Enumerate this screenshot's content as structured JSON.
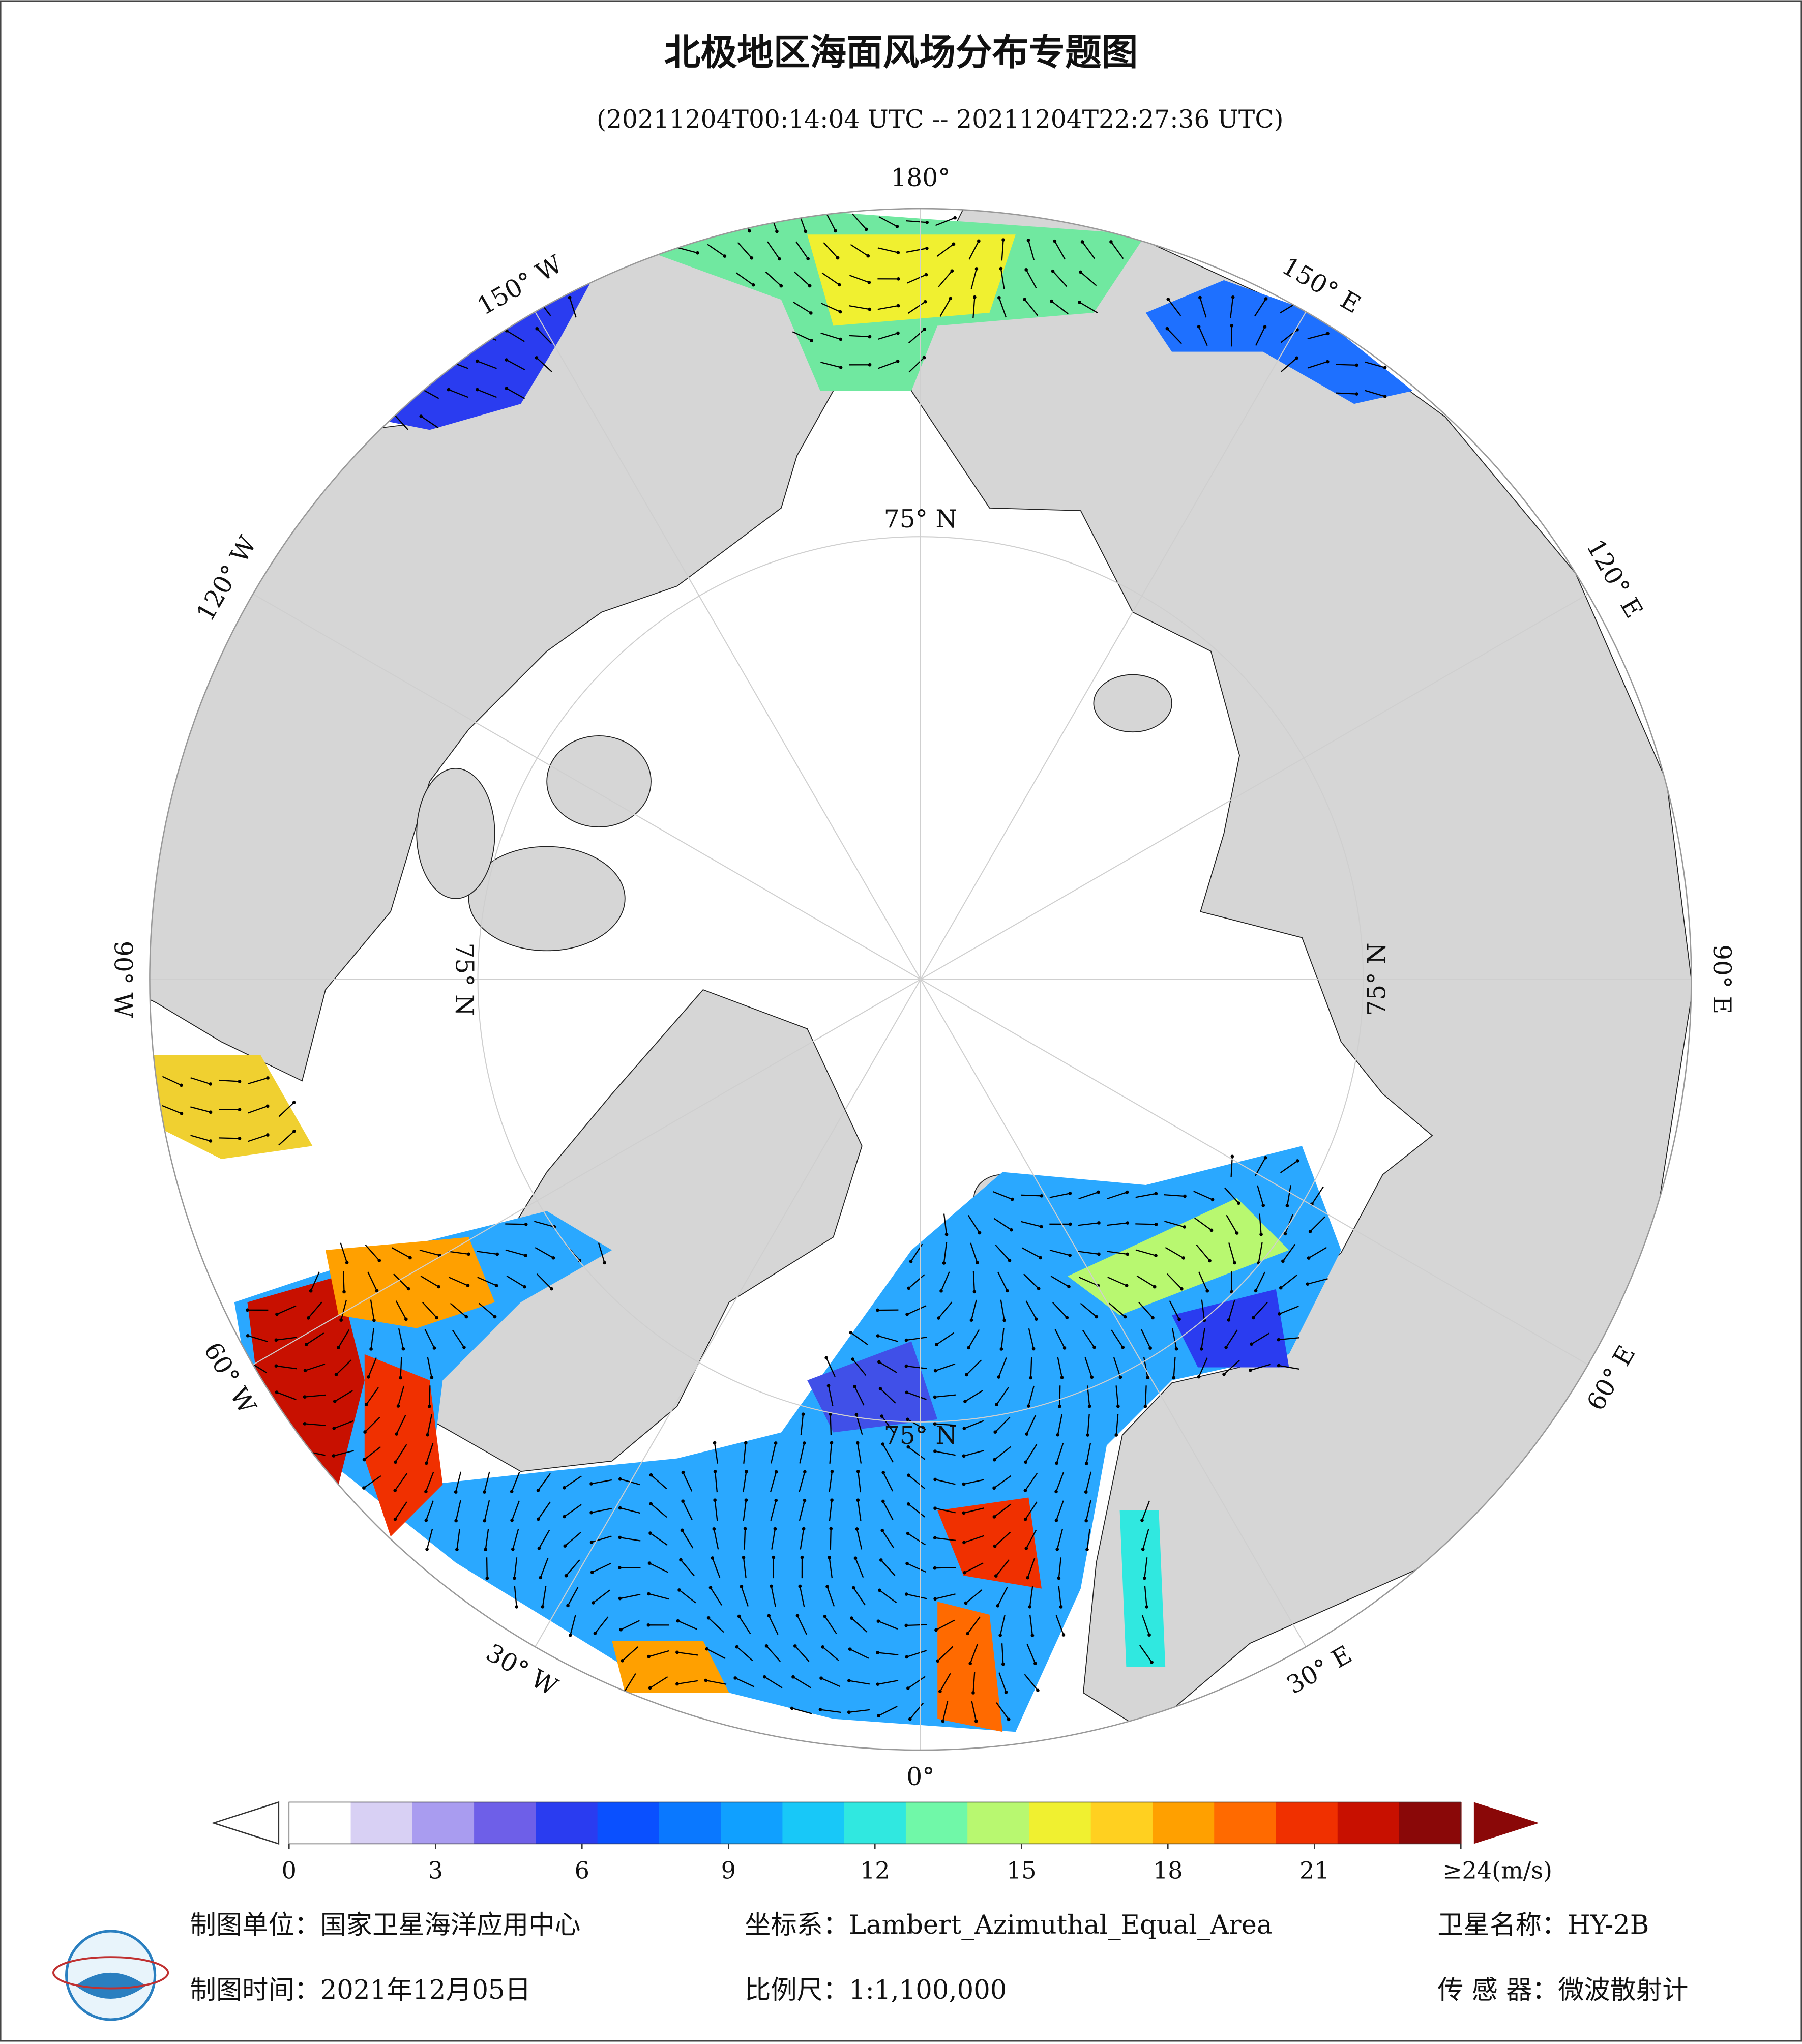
{
  "chart_data": {
    "type": "polar-map",
    "title": "北极地区海面风场分布专题图",
    "subtitle": "(20211204T00:14:04 UTC -- 20211204T22:27:36 UTC)",
    "meridian_labels": [
      "180°",
      "150° E",
      "120° E",
      "90° E",
      "60° E",
      "30° E",
      "0°",
      "30° W",
      "60° W",
      "90° W",
      "120° W",
      "150° W"
    ],
    "parallel_labels": [
      "75° N",
      "75° N",
      "75° N",
      "75° N"
    ],
    "colorbar": {
      "colors": [
        "#ffffff",
        "#d8d0f4",
        "#a99cf0",
        "#6e5fe8",
        "#2a3cf0",
        "#0a50ff",
        "#0a78ff",
        "#10a0ff",
        "#18c8f8",
        "#30e8e0",
        "#70f8a8",
        "#b8f870",
        "#f0f030",
        "#ffd020",
        "#ffa000",
        "#ff6a00",
        "#f03000",
        "#c81000",
        "#8a0808"
      ],
      "over_color": "#8a0808",
      "ticks": [
        0,
        3,
        6,
        9,
        12,
        15,
        18,
        21,
        {
          "value": 24,
          "label": "≥24(m/s)"
        }
      ],
      "lim": [
        0,
        24
      ]
    },
    "footer": [
      "制图单位：国家卫星海洋应用中心",
      "坐标系：Lambert_Azimuthal_Equal_Area",
      "卫星名称：HY-2B",
      "制图时间：2021年12月05日",
      "比例尺：1:1,100,000",
      "传 感 器：微波散射计"
    ]
  }
}
